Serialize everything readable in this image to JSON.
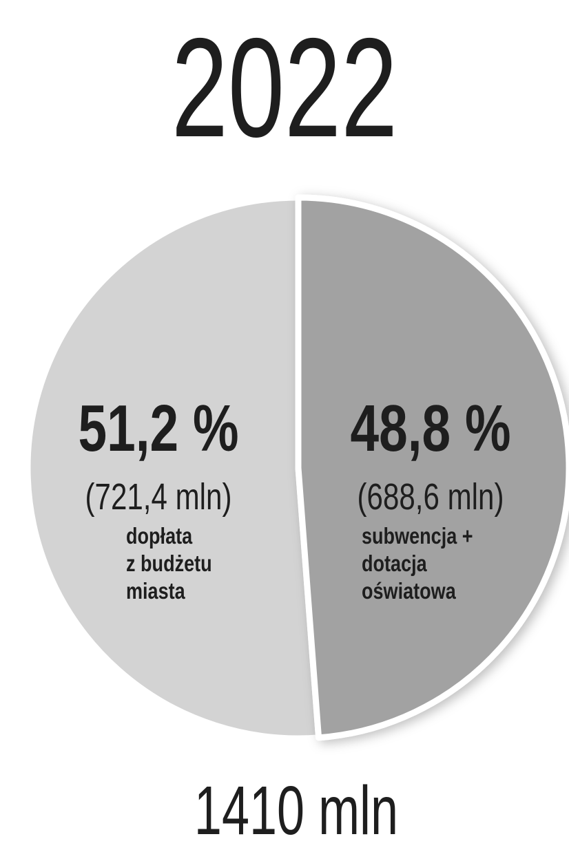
{
  "chart_data": {
    "type": "pie",
    "title": "2022",
    "values": [
      51.2,
      48.8
    ],
    "value_labels": [
      "51,2 %",
      "48,8 %"
    ],
    "amount_labels": [
      "(721,4 mln)",
      "(688,6 mln)"
    ],
    "categories": [
      [
        "dopłata",
        "z budżetu",
        "miasta"
      ],
      [
        "subwencja +",
        "dotacja",
        "oświatowa"
      ]
    ],
    "colors": [
      "#d3d3d3",
      "#a2a2a2"
    ],
    "total_label": "1410 mln"
  }
}
